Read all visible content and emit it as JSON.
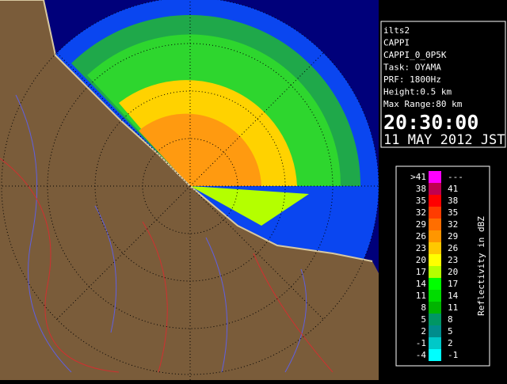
{
  "info": {
    "lines": [
      "ilts2",
      "CAPPI",
      "CAPPI_0_0P5K",
      "Task: OYAMA",
      "PRF: 1800Hz",
      "Height:0.5 km",
      "Max Range:80 km"
    ],
    "time": "20:30:00",
    "date": "11 MAY 2012 JST"
  },
  "legend": {
    "label": "Reflectivity in dBZ",
    "entries": [
      {
        "low": ">41",
        "high": "---",
        "color": "#ff00ff"
      },
      {
        "low": "38",
        "high": "41",
        "color": "#c00050"
      },
      {
        "low": "35",
        "high": "38",
        "color": "#ff0000"
      },
      {
        "low": "32",
        "high": "35",
        "color": "#ff3c00"
      },
      {
        "low": "29",
        "high": "32",
        "color": "#ff6e00"
      },
      {
        "low": "26",
        "high": "29",
        "color": "#ff9600"
      },
      {
        "low": "23",
        "high": "26",
        "color": "#ffc800"
      },
      {
        "low": "20",
        "high": "23",
        "color": "#ffff00"
      },
      {
        "low": "17",
        "high": "20",
        "color": "#b4ff00"
      },
      {
        "low": "14",
        "high": "17",
        "color": "#00ff00"
      },
      {
        "low": "11",
        "high": "14",
        "color": "#00dc00"
      },
      {
        "low": "8",
        "high": "11",
        "color": "#00b400"
      },
      {
        "low": "5",
        "high": "8",
        "color": "#009664"
      },
      {
        "low": "2",
        "high": "5",
        "color": "#008c8c"
      },
      {
        "low": "-1",
        "high": "2",
        "color": "#00c8c8"
      },
      {
        "low": "-4",
        "high": "-1",
        "color": "#00ffff"
      }
    ]
  }
}
